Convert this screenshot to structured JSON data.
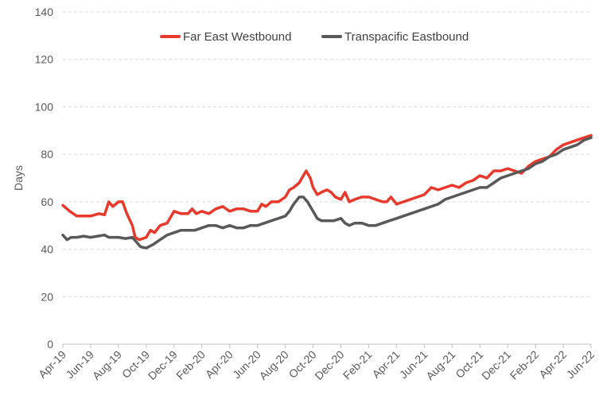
{
  "chart_data": {
    "type": "line",
    "title": "",
    "xlabel": "",
    "ylabel": "Days",
    "ylim": [
      0,
      140
    ],
    "y_ticks": [
      0,
      20,
      40,
      60,
      80,
      100,
      120,
      140
    ],
    "x_tick_labels": [
      "Apr-19",
      "Jun-19",
      "Aug-19",
      "Oct-19",
      "Dec-19",
      "Feb-20",
      "Apr-20",
      "Jun-20",
      "Aug-20",
      "Oct-20",
      "Dec-20",
      "Feb-21",
      "Apr-21",
      "Jun-21",
      "Aug-21",
      "Oct-21",
      "Dec-21",
      "Feb-22",
      "Apr-22",
      "Jun-22"
    ],
    "x_range": [
      "Apr-19",
      "Jun-22"
    ],
    "grid": "horizontal dashed",
    "legend_position": "top-center",
    "x_month_index_note": "x values are months with Apr-19 = 0 and Jun-22 = 38",
    "series": [
      {
        "name": "Far East Westbound",
        "color": "#e8392c",
        "points": [
          [
            0,
            58.5
          ],
          [
            0.5,
            56
          ],
          [
            1,
            54
          ],
          [
            1.5,
            54
          ],
          [
            2,
            54
          ],
          [
            2.3,
            54.5
          ],
          [
            2.6,
            55
          ],
          [
            3,
            54.5
          ],
          [
            3.3,
            60
          ],
          [
            3.6,
            58
          ],
          [
            4,
            60
          ],
          [
            4.3,
            60
          ],
          [
            4.6,
            55
          ],
          [
            5,
            50
          ],
          [
            5.2,
            45
          ],
          [
            5.5,
            44
          ],
          [
            6,
            45
          ],
          [
            6.3,
            48
          ],
          [
            6.6,
            47
          ],
          [
            7,
            50
          ],
          [
            7.5,
            51
          ],
          [
            8,
            56
          ],
          [
            8.5,
            55
          ],
          [
            9,
            55
          ],
          [
            9.3,
            57
          ],
          [
            9.6,
            55
          ],
          [
            10,
            56
          ],
          [
            10.5,
            55
          ],
          [
            11,
            57
          ],
          [
            11.5,
            58
          ],
          [
            12,
            56
          ],
          [
            12.5,
            57
          ],
          [
            13,
            57
          ],
          [
            13.5,
            56
          ],
          [
            14,
            56
          ],
          [
            14.3,
            59
          ],
          [
            14.6,
            58
          ],
          [
            15,
            60
          ],
          [
            15.5,
            60
          ],
          [
            16,
            62
          ],
          [
            16.3,
            65
          ],
          [
            16.6,
            66
          ],
          [
            17,
            68
          ],
          [
            17.3,
            71
          ],
          [
            17.5,
            73
          ],
          [
            17.8,
            70
          ],
          [
            18,
            66
          ],
          [
            18.3,
            63
          ],
          [
            18.6,
            64
          ],
          [
            19,
            65
          ],
          [
            19.3,
            64
          ],
          [
            19.6,
            62
          ],
          [
            20,
            61
          ],
          [
            20.3,
            64
          ],
          [
            20.6,
            60
          ],
          [
            21,
            61
          ],
          [
            21.5,
            62
          ],
          [
            22,
            62
          ],
          [
            22.5,
            61
          ],
          [
            23,
            60
          ],
          [
            23.3,
            60
          ],
          [
            23.6,
            62
          ],
          [
            24,
            59
          ],
          [
            24.5,
            60
          ],
          [
            25,
            61
          ],
          [
            25.5,
            62
          ],
          [
            26,
            63
          ],
          [
            26.5,
            66
          ],
          [
            27,
            65
          ],
          [
            27.5,
            66
          ],
          [
            28,
            67
          ],
          [
            28.5,
            66
          ],
          [
            29,
            68
          ],
          [
            29.5,
            69
          ],
          [
            30,
            71
          ],
          [
            30.5,
            70
          ],
          [
            31,
            73
          ],
          [
            31.5,
            73
          ],
          [
            32,
            74
          ],
          [
            32.5,
            73
          ],
          [
            33,
            72
          ],
          [
            33.5,
            75
          ],
          [
            34,
            77
          ],
          [
            34.5,
            78
          ],
          [
            35,
            79
          ],
          [
            35.5,
            82
          ],
          [
            36,
            84
          ],
          [
            36.5,
            85
          ],
          [
            37,
            86
          ],
          [
            37.5,
            87
          ],
          [
            38,
            88
          ]
        ]
      },
      {
        "name": "Transpacific Eastbound",
        "color": "#595959",
        "points": [
          [
            0,
            46
          ],
          [
            0.3,
            44
          ],
          [
            0.6,
            45
          ],
          [
            1,
            45
          ],
          [
            1.5,
            45.5
          ],
          [
            2,
            45
          ],
          [
            2.5,
            45.5
          ],
          [
            3,
            46
          ],
          [
            3.3,
            45
          ],
          [
            3.6,
            45
          ],
          [
            4,
            45
          ],
          [
            4.5,
            44.5
          ],
          [
            5,
            45
          ],
          [
            5.3,
            43
          ],
          [
            5.6,
            41
          ],
          [
            6,
            40.5
          ],
          [
            6.5,
            42
          ],
          [
            7,
            44
          ],
          [
            7.5,
            46
          ],
          [
            8,
            47
          ],
          [
            8.5,
            48
          ],
          [
            9,
            48
          ],
          [
            9.5,
            48
          ],
          [
            10,
            49
          ],
          [
            10.5,
            50
          ],
          [
            11,
            50
          ],
          [
            11.5,
            49
          ],
          [
            12,
            50
          ],
          [
            12.5,
            49
          ],
          [
            13,
            49
          ],
          [
            13.5,
            50
          ],
          [
            14,
            50
          ],
          [
            14.5,
            51
          ],
          [
            15,
            52
          ],
          [
            15.5,
            53
          ],
          [
            16,
            54
          ],
          [
            16.3,
            56
          ],
          [
            16.6,
            59
          ],
          [
            17,
            62
          ],
          [
            17.3,
            62
          ],
          [
            17.6,
            60
          ],
          [
            18,
            56
          ],
          [
            18.3,
            53
          ],
          [
            18.6,
            52
          ],
          [
            19,
            52
          ],
          [
            19.5,
            52
          ],
          [
            20,
            53
          ],
          [
            20.3,
            51
          ],
          [
            20.6,
            50
          ],
          [
            21,
            51
          ],
          [
            21.5,
            51
          ],
          [
            22,
            50
          ],
          [
            22.5,
            50
          ],
          [
            23,
            51
          ],
          [
            23.5,
            52
          ],
          [
            24,
            53
          ],
          [
            24.5,
            54
          ],
          [
            25,
            55
          ],
          [
            25.5,
            56
          ],
          [
            26,
            57
          ],
          [
            26.5,
            58
          ],
          [
            27,
            59
          ],
          [
            27.5,
            61
          ],
          [
            28,
            62
          ],
          [
            28.5,
            63
          ],
          [
            29,
            64
          ],
          [
            29.5,
            65
          ],
          [
            30,
            66
          ],
          [
            30.5,
            66
          ],
          [
            31,
            68
          ],
          [
            31.5,
            70
          ],
          [
            32,
            71
          ],
          [
            32.5,
            72
          ],
          [
            33,
            73
          ],
          [
            33.5,
            74
          ],
          [
            34,
            76
          ],
          [
            34.5,
            77
          ],
          [
            35,
            79
          ],
          [
            35.5,
            80
          ],
          [
            36,
            82
          ],
          [
            36.5,
            83
          ],
          [
            37,
            84
          ],
          [
            37.5,
            86
          ],
          [
            38,
            87
          ]
        ]
      }
    ]
  }
}
